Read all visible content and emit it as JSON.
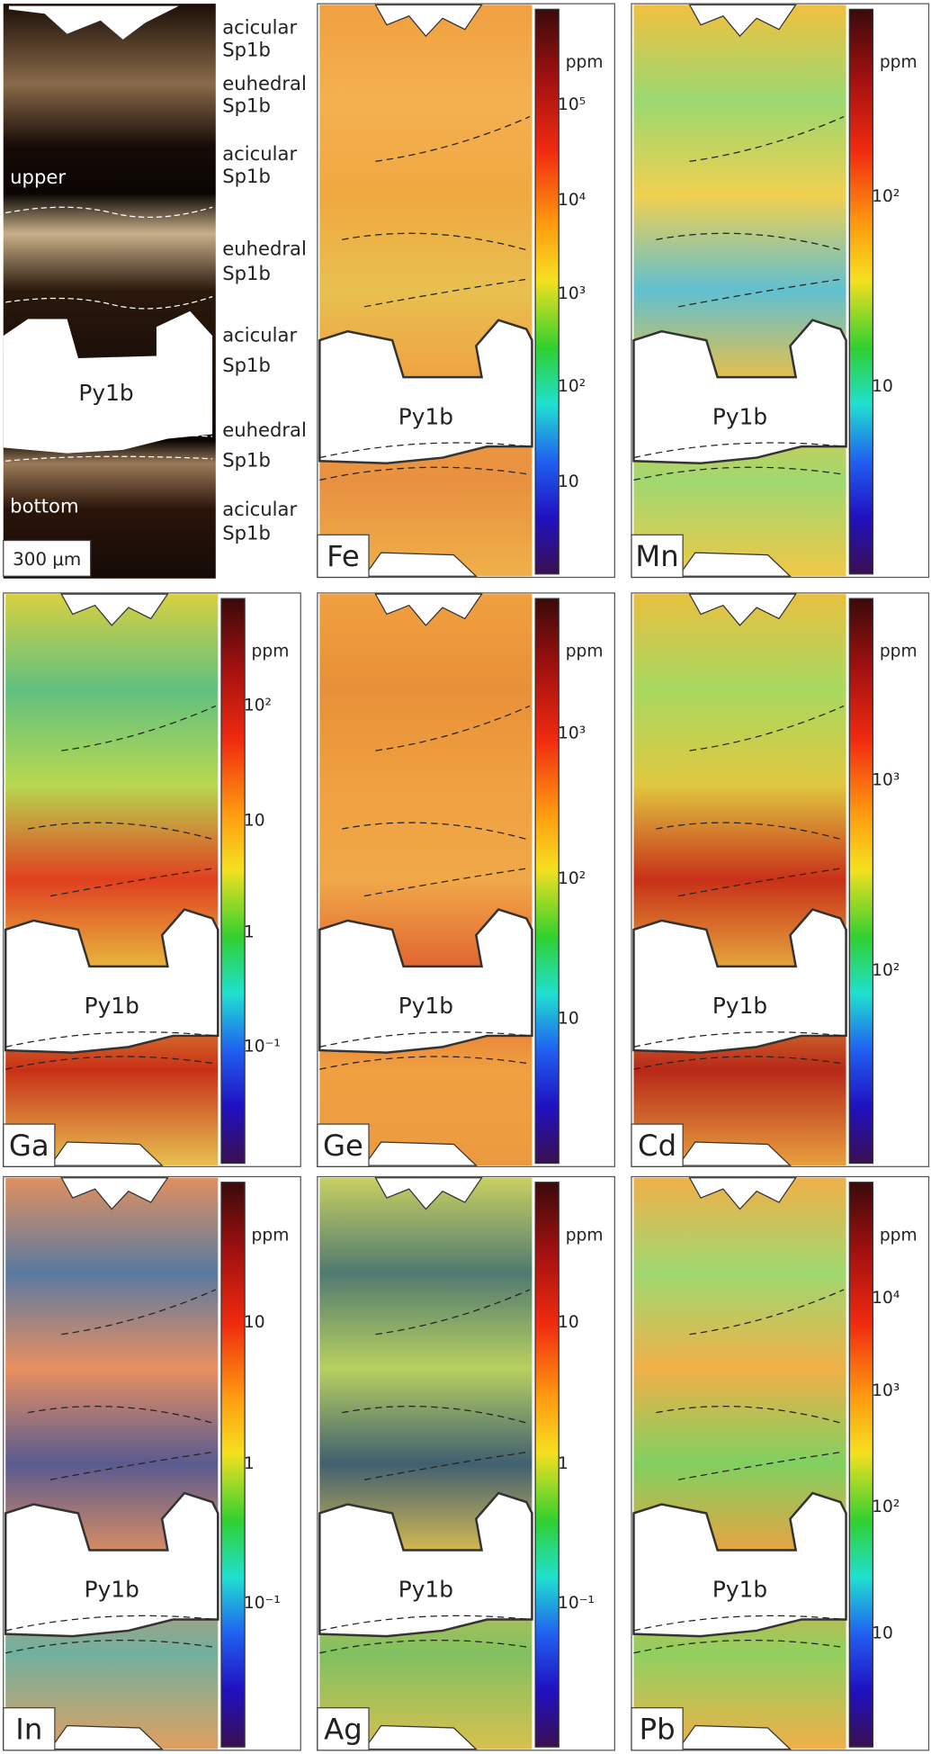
{
  "figure": {
    "photo": {
      "upper": "upper",
      "bottom": "bottom",
      "mineral": "Py1b",
      "scale_bar": "300 μm"
    },
    "zones": [
      [
        "acicular",
        "Sp1b"
      ],
      [
        "euhedral",
        "Sp1b"
      ],
      [
        "acicular",
        "Sp1b"
      ],
      [
        "euhedral",
        "Sp1b"
      ],
      [
        "acicular",
        "Sp1b"
      ],
      [
        "euhedral",
        "Sp1b"
      ],
      [
        "acicular",
        "Sp1b"
      ]
    ],
    "panels": [
      {
        "element": "Fe",
        "mineral": "Py1b",
        "unit": "ppm",
        "ticks": [
          "10⁵",
          "10⁴",
          "10³",
          "10²",
          "10"
        ]
      },
      {
        "element": "Mn",
        "mineral": "Py1b",
        "unit": "ppm",
        "ticks": [
          "10²",
          "10"
        ]
      },
      {
        "element": "Ga",
        "mineral": "Py1b",
        "unit": "ppm",
        "ticks": [
          "10²",
          "10",
          "1",
          "10⁻¹"
        ]
      },
      {
        "element": "Ge",
        "mineral": "Py1b",
        "unit": "ppm",
        "ticks": [
          "10³",
          "10²",
          "10"
        ]
      },
      {
        "element": "Cd",
        "mineral": "Py1b",
        "unit": "ppm",
        "ticks": [
          "10³",
          "10²"
        ]
      },
      {
        "element": "In",
        "mineral": "Py1b",
        "unit": "ppm",
        "ticks": [
          "10",
          "1",
          "10⁻¹"
        ]
      },
      {
        "element": "Ag",
        "mineral": "Py1b",
        "unit": "ppm",
        "ticks": [
          "10",
          "1",
          "10⁻¹"
        ]
      },
      {
        "element": "Pb",
        "mineral": "Py1b",
        "unit": "ppm",
        "ticks": [
          "10⁴",
          "10³",
          "10²",
          "10"
        ]
      }
    ]
  }
}
